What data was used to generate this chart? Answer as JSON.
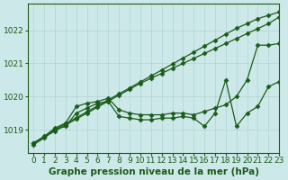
{
  "title": "Graphe pression niveau de la mer (hPa)",
  "bg_color": "#cce8e8",
  "grid_color": "#b0d4d4",
  "line_color": "#1a5c1a",
  "xlim": [
    -0.5,
    23
  ],
  "ylim": [
    1018.3,
    1022.8
  ],
  "yticks": [
    1019,
    1020,
    1021,
    1022
  ],
  "xticks": [
    0,
    1,
    2,
    3,
    4,
    5,
    6,
    7,
    8,
    9,
    10,
    11,
    12,
    13,
    14,
    15,
    16,
    17,
    18,
    19,
    20,
    21,
    22,
    23
  ],
  "series": [
    {
      "x": [
        0,
        1,
        2,
        3,
        4,
        5,
        6,
        7,
        8,
        9,
        10,
        11,
        12,
        13,
        14,
        15,
        16,
        17,
        18,
        19,
        20,
        21,
        22,
        23
      ],
      "y": [
        1018.6,
        1018.78,
        1019.0,
        1019.18,
        1019.36,
        1019.54,
        1019.72,
        1019.9,
        1020.08,
        1020.26,
        1020.44,
        1020.62,
        1020.8,
        1020.98,
        1021.16,
        1021.34,
        1021.52,
        1021.7,
        1021.88,
        1022.06,
        1022.2,
        1022.35,
        1022.45,
        1022.55
      ],
      "marker": "D",
      "ms": 2.5,
      "lw": 0.9
    },
    {
      "x": [
        0,
        1,
        2,
        3,
        4,
        5,
        6,
        7,
        8,
        9,
        10,
        11,
        12,
        13,
        14,
        15,
        16,
        17,
        18,
        19,
        20,
        21,
        22,
        23
      ],
      "y": [
        1018.6,
        1018.78,
        1018.96,
        1019.14,
        1019.32,
        1019.5,
        1019.68,
        1019.86,
        1020.04,
        1020.22,
        1020.4,
        1020.55,
        1020.7,
        1020.85,
        1021.0,
        1021.15,
        1021.3,
        1021.45,
        1021.6,
        1021.75,
        1021.9,
        1022.05,
        1022.2,
        1022.4
      ],
      "marker": "D",
      "ms": 2.5,
      "lw": 0.9
    },
    {
      "x": [
        0,
        1,
        2,
        3,
        4,
        5,
        6,
        7,
        8,
        9,
        10,
        11,
        12,
        13,
        14,
        15,
        16,
        17,
        18,
        19,
        20,
        21,
        22,
        23
      ],
      "y": [
        1018.6,
        1018.8,
        1019.05,
        1019.2,
        1019.7,
        1019.8,
        1019.85,
        1019.95,
        1019.6,
        1019.5,
        1019.45,
        1019.45,
        1019.45,
        1019.5,
        1019.5,
        1019.45,
        1019.55,
        1019.65,
        1019.75,
        1020.0,
        1020.5,
        1021.55,
        1021.55,
        1021.6
      ],
      "marker": "D",
      "ms": 2.5,
      "lw": 0.9
    },
    {
      "x": [
        0,
        1,
        2,
        3,
        4,
        5,
        6,
        7,
        8,
        9,
        10,
        11,
        12,
        13,
        14,
        15,
        16,
        17,
        18,
        19,
        20,
        21,
        22,
        23
      ],
      "y": [
        1018.55,
        1018.75,
        1019.0,
        1019.1,
        1019.5,
        1019.65,
        1019.8,
        1019.85,
        1019.4,
        1019.35,
        1019.3,
        1019.3,
        1019.35,
        1019.35,
        1019.4,
        1019.35,
        1019.1,
        1019.5,
        1020.5,
        1019.1,
        1019.5,
        1019.7,
        1020.3,
        1020.45
      ],
      "marker": "D",
      "ms": 2.5,
      "lw": 0.9
    }
  ],
  "font_color": "#1a5c1a",
  "tick_fontsize": 6.5,
  "label_fontsize": 7.5
}
